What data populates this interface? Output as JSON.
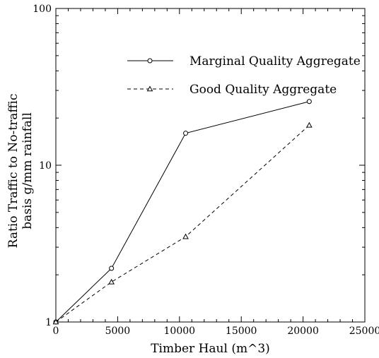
{
  "chart_data": {
    "type": "line",
    "title": "",
    "xlabel": "Timber Haul (m^3)",
    "ylabel_lines": [
      "Ratio Traffic to No-traffic",
      "basis g/mm rainfall"
    ],
    "xlim": [
      0,
      25000
    ],
    "ylim": [
      1,
      100
    ],
    "y_scale": "log",
    "x_ticks": [
      0,
      5000,
      10000,
      15000,
      20000,
      25000
    ],
    "x_tick_labels": [
      "0",
      "5000",
      "10000",
      "15000",
      "20000",
      "25000"
    ],
    "y_ticks": [
      1,
      10,
      100
    ],
    "y_tick_labels": [
      "1",
      "10",
      "100"
    ],
    "grid": false,
    "legend_position": "top-right",
    "series": [
      {
        "name": "Marginal Quality Aggregate",
        "marker": "circle",
        "line_style": "solid",
        "color": "#000000",
        "x": [
          0,
          4500,
          10500,
          20500
        ],
        "y": [
          1.0,
          2.2,
          16.0,
          25.5
        ]
      },
      {
        "name": "Good Quality Aggregate",
        "marker": "triangle",
        "line_style": "dashed",
        "color": "#000000",
        "x": [
          0,
          4500,
          10500,
          20500
        ],
        "y": [
          1.0,
          1.8,
          3.5,
          18.0
        ]
      }
    ]
  }
}
